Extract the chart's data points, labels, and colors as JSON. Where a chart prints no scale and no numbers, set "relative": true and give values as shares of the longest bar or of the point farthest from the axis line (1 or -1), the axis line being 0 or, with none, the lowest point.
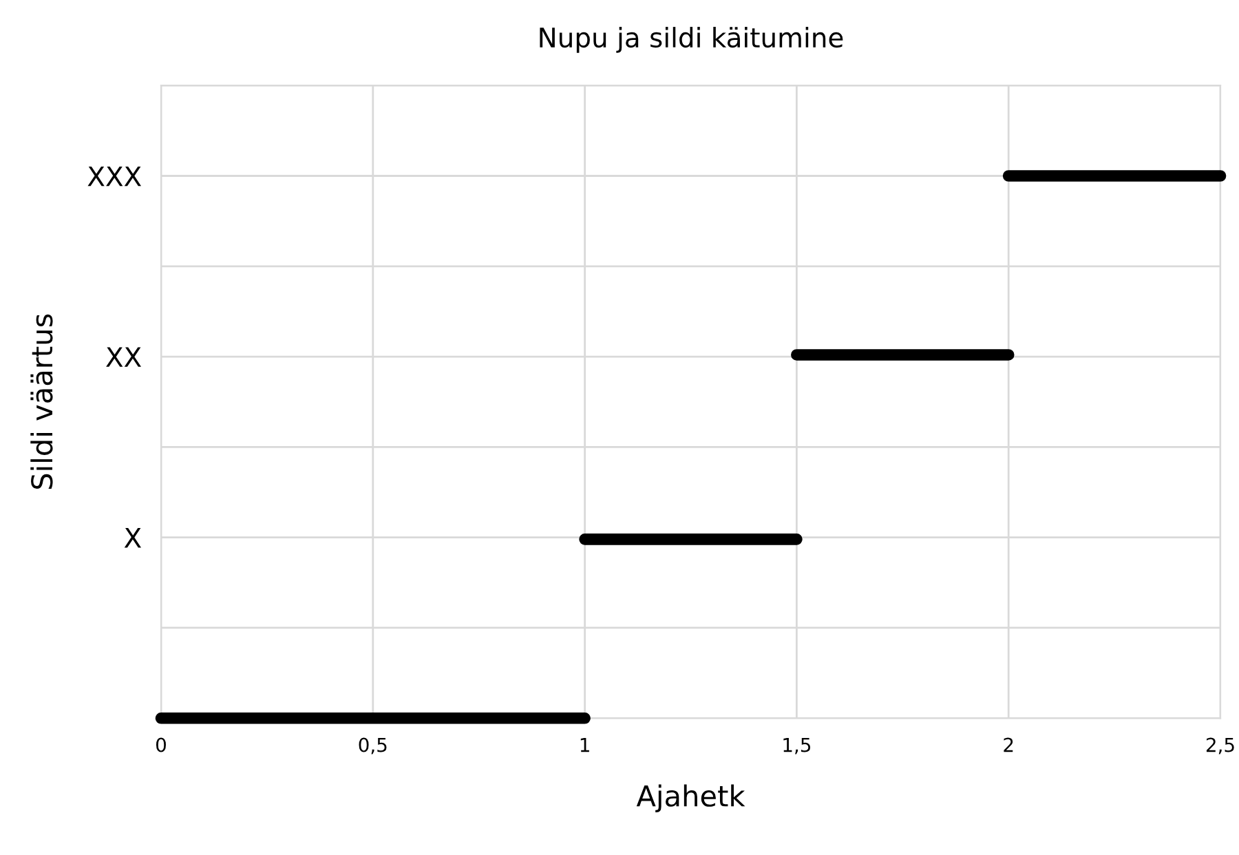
{
  "chart_data": {
    "type": "line",
    "title": "Nupu ja sildi käitumine",
    "xlabel": "Ajahetk",
    "ylabel": "Sildi väärtus",
    "relative": true,
    "annotations": [
      "X",
      "XX",
      "XXX"
    ],
    "series": [
      {
        "color": "#000000",
        "x": [
          0,
          1,
          null,
          1,
          1.5,
          null,
          1.5,
          2,
          null,
          2,
          2.5
        ],
        "values": [
          0,
          0,
          null,
          0.33,
          0.33,
          null,
          0.67,
          0.67,
          null,
          1,
          1
        ]
      }
    ],
    "xlim": [
      0,
      2.5
    ],
    "xticks": [
      {
        "value": 0,
        "label": "0"
      },
      {
        "value": 0.5,
        "label": "0,5"
      },
      {
        "value": 1,
        "label": "1"
      },
      {
        "value": 1.5,
        "label": "1,5"
      },
      {
        "value": 2,
        "label": "2"
      },
      {
        "value": 2.5,
        "label": "2,5"
      }
    ],
    "grid": true,
    "marker": "none",
    "line_style": "solid"
  }
}
